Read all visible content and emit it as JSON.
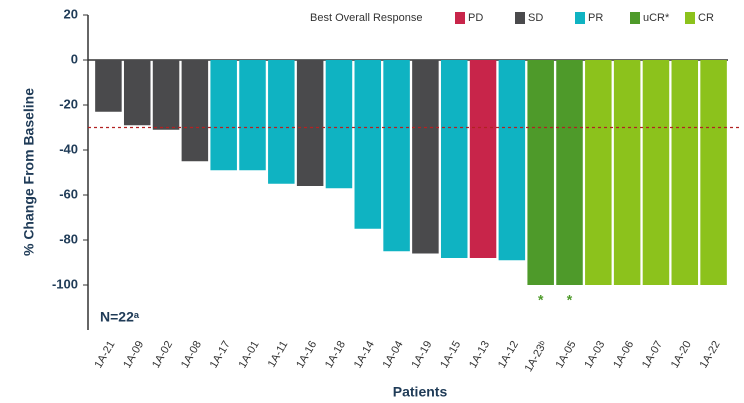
{
  "chart_data": {
    "type": "bar",
    "ylabel": "% Change From Baseline",
    "xlabel": "Patients",
    "note": "N=22ᵃ",
    "legend_title": "Best Overall Response",
    "legend": [
      {
        "name": "PD",
        "color": "#c8254a"
      },
      {
        "name": "SD",
        "color": "#4a4a4c"
      },
      {
        "name": "PR",
        "color": "#0fb3c2"
      },
      {
        "name": "uCR*",
        "color": "#4e9a2a"
      },
      {
        "name": "CR",
        "color": "#8cc21c"
      }
    ],
    "categories": [
      "1A-21",
      "1A-09",
      "1A-02",
      "1A-08",
      "1A-17",
      "1A-01",
      "1A-11",
      "1A-16",
      "1A-18",
      "1A-14",
      "1A-04",
      "1A-19",
      "1A-15",
      "1A-13",
      "1A-12",
      "1A-23ᵇ",
      "1A-05",
      "1A-03",
      "1A-06",
      "1A-07",
      "1A-20",
      "1A-22"
    ],
    "values": [
      -23,
      -29,
      -31,
      -45,
      -49,
      -49,
      -55,
      -56,
      -57,
      -75,
      -85,
      -86,
      -88,
      -88,
      -89,
      -100,
      -100,
      -100,
      -100,
      -100,
      -100,
      -100
    ],
    "colors": [
      "#4a4a4c",
      "#4a4a4c",
      "#4a4a4c",
      "#4a4a4c",
      "#0fb3c2",
      "#0fb3c2",
      "#0fb3c2",
      "#4a4a4c",
      "#0fb3c2",
      "#0fb3c2",
      "#0fb3c2",
      "#4a4a4c",
      "#0fb3c2",
      "#c8254a",
      "#0fb3c2",
      "#4e9a2a",
      "#4e9a2a",
      "#8cc21c",
      "#8cc21c",
      "#8cc21c",
      "#8cc21c",
      "#8cc21c"
    ],
    "reference_line": {
      "value": -30,
      "color": "#b22222"
    },
    "annotations": [
      {
        "text": "*",
        "x": "1A-23ᵇ"
      },
      {
        "text": "*",
        "x": "1A-05"
      }
    ],
    "ylim": [
      -120,
      20
    ],
    "yticks": [
      20,
      0,
      -20,
      -40,
      -60,
      -80,
      -100
    ]
  }
}
